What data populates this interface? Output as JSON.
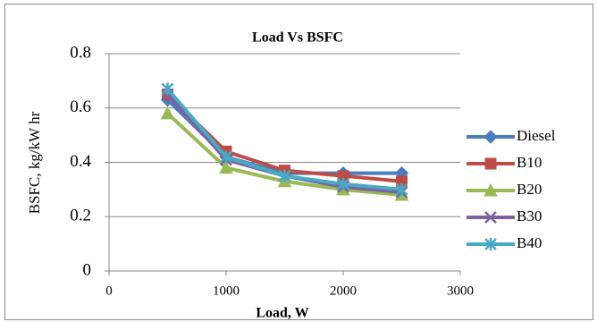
{
  "chart_data": {
    "type": "line",
    "title": "Load Vs BSFC",
    "x_label": "Load, W",
    "y_label": "BSFC, kg/kW hr",
    "x": [
      500,
      1000,
      1500,
      2000,
      2500
    ],
    "xlim": [
      0,
      3000
    ],
    "xticks": [
      0,
      1000,
      2000,
      3000
    ],
    "ylim": [
      0,
      0.8
    ],
    "yticks": [
      0,
      {
        "value": 0.2,
        "label": "0.2"
      },
      {
        "value": 0.4,
        "label": "0.4"
      },
      {
        "value": 0.6,
        "label": "0.6"
      },
      {
        "value": 0.8,
        "label": "0.8"
      }
    ],
    "grid": true,
    "legend": "right",
    "series": [
      {
        "name": "Diesel",
        "color": "#4a7ebb",
        "marker": "diamond",
        "values": [
          0.63,
          0.42,
          0.36,
          0.36,
          0.36
        ]
      },
      {
        "name": "B10",
        "color": "#be4b48",
        "marker": "square",
        "values": [
          0.65,
          0.44,
          0.37,
          0.35,
          0.33
        ]
      },
      {
        "name": "B20",
        "color": "#98b954",
        "marker": "triangle",
        "values": [
          0.58,
          0.38,
          0.33,
          0.3,
          0.28
        ]
      },
      {
        "name": "B30",
        "color": "#7d60a0",
        "marker": "x",
        "values": [
          0.65,
          0.41,
          0.35,
          0.31,
          0.29
        ]
      },
      {
        "name": "B40",
        "color": "#46aac5",
        "marker": "star",
        "values": [
          0.67,
          0.42,
          0.35,
          0.32,
          0.3
        ]
      }
    ]
  }
}
